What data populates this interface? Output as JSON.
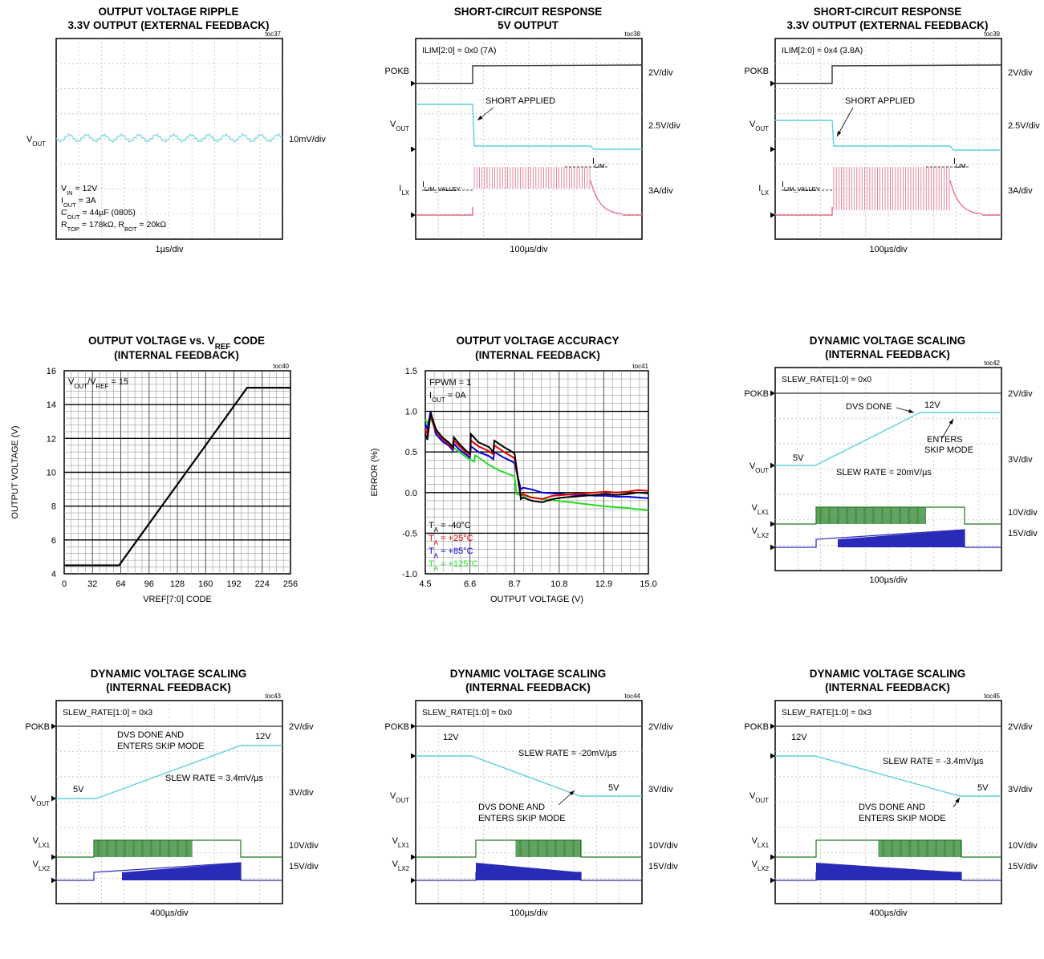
{
  "panels": [
    {
      "tag": "toc37",
      "title": [
        "OUTPUT VOLTAGE RIPPLE",
        "3.3V OUTPUT (EXTERNAL FEEDBACK)"
      ],
      "left_labels": [
        {
          "base": "V",
          "sub": "OUT"
        }
      ],
      "right_labels": [
        "10mV/div"
      ],
      "annotations": [
        {
          "base": "V",
          "sub": "IN",
          "rest": " = 12V"
        },
        {
          "base": "I",
          "sub": "OUT",
          "rest": " = 3A"
        },
        {
          "base": "C",
          "sub": "OUT",
          "rest": " = 44µF (0805)"
        },
        {
          "base": "R",
          "sub": "TOP",
          "rest": " = 178kΩ, R",
          "sub2": "BOT",
          "rest2": " = 20kΩ"
        }
      ],
      "xlabel": "1µs/div"
    },
    {
      "tag": "toc38",
      "title": [
        "SHORT-CIRCUIT RESPONSE",
        "5V OUTPUT"
      ],
      "setting": "ILIM[2:0] = 0x0 (7A)",
      "left_labels": [
        {
          "base": "POKB"
        },
        {
          "base": "V",
          "sub": "OUT"
        },
        {
          "base": "I",
          "sub": "LX"
        }
      ],
      "right_labels": [
        "2V/div",
        "2.5V/div",
        "3A/div"
      ],
      "annotations": [
        "SHORT APPLIED",
        {
          "base": "I",
          "sub": "LIM_VALLEY"
        },
        {
          "base": "I",
          "sub": "LIM"
        }
      ],
      "xlabel": "100µs/div"
    },
    {
      "tag": "toc39",
      "title": [
        "SHORT-CIRCUIT RESPONSE",
        "3.3V OUTPUT (EXTERNAL FEEDBACK)"
      ],
      "setting": "ILIM[2:0] = 0x4 (3.8A)",
      "left_labels": [
        {
          "base": "POKB"
        },
        {
          "base": "V",
          "sub": "OUT"
        },
        {
          "base": "I",
          "sub": "LX"
        }
      ],
      "right_labels": [
        "2V/div",
        "2.5V/div",
        "3A/div"
      ],
      "annotations": [
        "SHORT APPLIED",
        {
          "base": "I",
          "sub": "LIM_VALLEY"
        },
        {
          "base": "I",
          "sub": "LIM"
        }
      ],
      "xlabel": "100µs/div"
    },
    {
      "tag": "toc42",
      "title": [
        "DYNAMIC VOLTAGE SCALING",
        "(INTERNAL FEEDBACK)"
      ],
      "setting": "SLEW_RATE[1:0] = 0x0",
      "left_labels": [
        {
          "base": "POKB"
        },
        {
          "base": "V",
          "sub": "OUT"
        },
        {
          "base": "V",
          "sub": "LX1"
        },
        {
          "base": "V",
          "sub": "LX2"
        }
      ],
      "right_labels": [
        "2V/div",
        "3V/div",
        "10V/div",
        "15V/div"
      ],
      "annotations": [
        "DVS DONE",
        "12V",
        "ENTERS",
        "SKIP MODE",
        "5V",
        "SLEW RATE = 20mV/µs"
      ],
      "xlabel": "100µs/div"
    },
    {
      "tag": "toc43",
      "title": [
        "DYNAMIC VOLTAGE SCALING",
        "(INTERNAL FEEDBACK)"
      ],
      "setting": "SLEW_RATE[1:0] = 0x3",
      "left_labels": [
        {
          "base": "POKB"
        },
        {
          "base": "V",
          "sub": "OUT"
        },
        {
          "base": "V",
          "sub": "LX1"
        },
        {
          "base": "V",
          "sub": "LX2"
        }
      ],
      "right_labels": [
        "2V/div",
        "3V/div",
        "10V/div",
        "15V/div"
      ],
      "annotations": [
        "DVS DONE AND",
        "ENTERS SKIP MODE",
        "12V",
        "5V",
        "SLEW RATE = 3.4mV/µs"
      ],
      "xlabel": "400µs/div"
    },
    {
      "tag": "toc44",
      "title": [
        "DYNAMIC VOLTAGE SCALING",
        "(INTERNAL FEEDBACK)"
      ],
      "setting": "SLEW_RATE[1:0] = 0x0",
      "left_labels": [
        {
          "base": "POKB"
        },
        {
          "base": "V",
          "sub": "OUT"
        },
        {
          "base": "V",
          "sub": "LX1"
        },
        {
          "base": "V",
          "sub": "LX2"
        }
      ],
      "right_labels": [
        "2V/div",
        "3V/div",
        "10V/div",
        "15V/div"
      ],
      "annotations": [
        "12V",
        "SLEW RATE = -20mV/µs",
        "5V",
        "DVS DONE AND",
        "ENTERS SKIP MODE"
      ],
      "xlabel": "100µs/div"
    },
    {
      "tag": "toc45",
      "title": [
        "DYNAMIC VOLTAGE SCALING",
        "(INTERNAL FEEDBACK)"
      ],
      "setting": "SLEW_RATE[1:0] = 0x3",
      "left_labels": [
        {
          "base": "POKB"
        },
        {
          "base": "V",
          "sub": "OUT"
        },
        {
          "base": "V",
          "sub": "LX1"
        },
        {
          "base": "V",
          "sub": "LX2"
        }
      ],
      "right_labels": [
        "2V/div",
        "3V/div",
        "10V/div",
        "15V/div"
      ],
      "annotations": [
        "12V",
        "SLEW RATE = -3.4mV/µs",
        "5V",
        "DVS DONE AND",
        "ENTERS SKIP MODE"
      ],
      "xlabel": "400µs/div"
    }
  ],
  "colors": {
    "pokb": "#333333",
    "vout": "#5fd0dc",
    "ilx": "#e06a86",
    "vlx1": "#1f7a1f",
    "vlx2": "#2a2ab8",
    "grid": "#bbbbbb"
  },
  "chart_data": [
    {
      "type": "line",
      "tag": "toc40",
      "title": [
        "OUTPUT VOLTAGE vs. V",
        "REF",
        " CODE"
      ],
      "title_line2": "(INTERNAL FEEDBACK)",
      "annotation": {
        "base": "V",
        "sub": "OUT",
        "mid": "/V",
        "sub2": "REF",
        "rest": " = 15"
      },
      "xlabel": "VREF[7:0] CODE",
      "ylabel": "OUTPUT VOLTAGE (V)",
      "xlim": [
        0,
        256
      ],
      "ylim": [
        4,
        16
      ],
      "xticks": [
        "0",
        "32",
        "64",
        "96",
        "128",
        "160",
        "192",
        "224",
        "256"
      ],
      "yticks": [
        "4",
        "6",
        "8",
        "10",
        "12",
        "14",
        "16"
      ],
      "grid": true,
      "series": [
        {
          "x": [
            0,
            62,
            207,
            256
          ],
          "y": [
            4.5,
            4.5,
            15,
            15
          ]
        }
      ]
    },
    {
      "type": "line",
      "tag": "toc41",
      "title": [
        "OUTPUT VOLTAGE ACCURACY"
      ],
      "title_line2": "(INTERNAL FEEDBACK)",
      "annotations": [
        "FPWM = 1",
        {
          "base": "I",
          "sub": "OUT",
          "rest": " = 0A"
        }
      ],
      "xlabel": "OUTPUT VOLTAGE (V)",
      "ylabel": "ERROR (%)",
      "xlim": [
        4.5,
        15.0
      ],
      "ylim": [
        -1.0,
        1.5
      ],
      "xticks": [
        "4.5",
        "6.6",
        "8.7",
        "10.8",
        "12.9",
        "15.0"
      ],
      "yticks": [
        "-1.0",
        "-0.5",
        "0.0",
        "0.5",
        "1.0",
        "1.5"
      ],
      "grid": true,
      "legend_position": "bottom-left",
      "series": [
        {
          "name": "T_A = -40°C",
          "label_base": "T",
          "label_sub": "A",
          "label_rest": " = -40°C",
          "color": "#000000",
          "x": [
            4.5,
            4.6,
            4.75,
            5.0,
            5.3,
            5.6,
            5.8,
            5.85,
            6.1,
            6.4,
            6.6,
            6.65,
            7.0,
            7.5,
            7.7,
            7.75,
            8.2,
            8.6,
            8.7,
            9.0,
            9.1,
            9.5,
            10.0,
            10.5,
            11.0,
            11.5,
            12.0,
            12.5,
            13.0,
            13.5,
            14.0,
            14.5,
            15.0
          ],
          "y": [
            0.72,
            0.65,
            0.98,
            0.78,
            0.68,
            0.62,
            0.56,
            0.68,
            0.6,
            0.52,
            0.48,
            0.72,
            0.62,
            0.56,
            0.5,
            0.64,
            0.56,
            0.5,
            0.48,
            -0.08,
            -0.06,
            -0.1,
            -0.12,
            -0.08,
            -0.06,
            -0.05,
            -0.04,
            -0.03,
            -0.02,
            -0.03,
            -0.02,
            0.0,
            -0.01
          ]
        },
        {
          "name": "T_A = +25°C",
          "label_base": "T",
          "label_sub": "A",
          "label_rest": " = +25°C",
          "color": "#e00000",
          "x": [
            4.5,
            4.6,
            4.75,
            5.0,
            5.3,
            5.6,
            5.8,
            5.85,
            6.1,
            6.4,
            6.6,
            6.65,
            7.0,
            7.5,
            7.7,
            7.75,
            8.2,
            8.6,
            8.7,
            9.0,
            9.1,
            9.5,
            10.0,
            10.5,
            11.0,
            11.5,
            12.0,
            12.5,
            13.0,
            13.5,
            14.0,
            14.5,
            15.0
          ],
          "y": [
            0.78,
            0.72,
            0.95,
            0.76,
            0.66,
            0.6,
            0.54,
            0.64,
            0.57,
            0.5,
            0.46,
            0.64,
            0.57,
            0.51,
            0.47,
            0.58,
            0.5,
            0.44,
            0.42,
            -0.04,
            -0.02,
            -0.06,
            -0.08,
            -0.04,
            -0.03,
            -0.02,
            -0.01,
            0.0,
            0.01,
            0.0,
            0.01,
            0.03,
            0.02
          ]
        },
        {
          "name": "T_A = +85°C",
          "label_base": "T",
          "label_sub": "A",
          "label_rest": " = +85°C",
          "color": "#0000dd",
          "x": [
            4.5,
            4.6,
            4.75,
            5.0,
            5.3,
            5.6,
            5.8,
            5.85,
            6.1,
            6.4,
            6.6,
            6.65,
            7.0,
            7.5,
            7.7,
            7.75,
            8.2,
            8.6,
            8.7,
            9.0,
            9.1,
            9.5,
            10.0,
            10.5,
            11.0,
            11.5,
            12.0,
            12.5,
            13.0,
            13.5,
            14.0,
            14.5,
            15.0
          ],
          "y": [
            0.85,
            0.78,
            1.0,
            0.72,
            0.63,
            0.58,
            0.52,
            0.6,
            0.53,
            0.47,
            0.43,
            0.57,
            0.5,
            0.45,
            0.41,
            0.5,
            0.43,
            0.38,
            0.36,
            0.04,
            0.06,
            0.04,
            0.0,
            -0.01,
            -0.02,
            -0.03,
            -0.03,
            -0.04,
            -0.04,
            -0.05,
            -0.05,
            -0.06,
            -0.07
          ]
        },
        {
          "name": "T_A = +125°C",
          "label_base": "T",
          "label_sub": "A",
          "label_rest": " = +125°C",
          "color": "#22dd22",
          "x": [
            4.5,
            4.6,
            4.75,
            5.0,
            5.5,
            6.0,
            6.5,
            6.8,
            6.85,
            7.5,
            8.0,
            8.7,
            8.8,
            9.5,
            10.0,
            11.0,
            12.0,
            13.0,
            14.0,
            15.0
          ],
          "y": [
            0.9,
            0.85,
            0.92,
            0.75,
            0.62,
            0.52,
            0.42,
            0.38,
            0.46,
            0.34,
            0.27,
            0.2,
            -0.02,
            -0.06,
            -0.08,
            -0.11,
            -0.14,
            -0.17,
            -0.19,
            -0.22
          ]
        }
      ]
    }
  ]
}
